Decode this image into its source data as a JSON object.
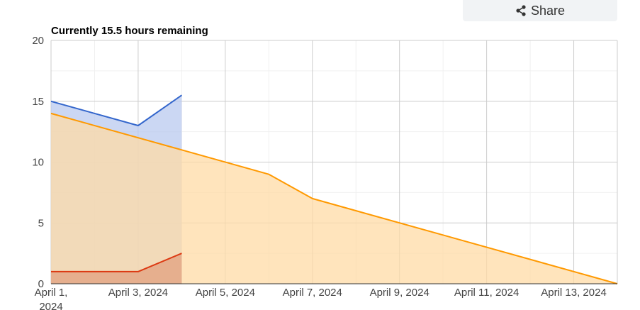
{
  "share": {
    "label": "Share",
    "icon": "share-icon"
  },
  "chart_data": {
    "type": "area",
    "title": "Currently 15.5 hours remaining",
    "xlabel": "",
    "ylabel": "",
    "ylim": [
      0,
      20
    ],
    "xlim": [
      "2024-04-01",
      "2024-04-14"
    ],
    "y_ticks": [
      "0",
      "5",
      "10",
      "15",
      "20"
    ],
    "x_ticks": [
      {
        "date": "2024-04-01",
        "label": [
          "April 1,",
          "2024"
        ]
      },
      {
        "date": "2024-04-03",
        "label": [
          "April 3, 2024"
        ]
      },
      {
        "date": "2024-04-05",
        "label": [
          "April 5, 2024"
        ]
      },
      {
        "date": "2024-04-07",
        "label": [
          "April 7, 2024"
        ]
      },
      {
        "date": "2024-04-09",
        "label": [
          "April 9, 2024"
        ]
      },
      {
        "date": "2024-04-11",
        "label": [
          "April 11, 2024"
        ]
      },
      {
        "date": "2024-04-13",
        "label": [
          "April 13, 2024"
        ]
      }
    ],
    "grid": true,
    "series": [
      {
        "color": "#3366cc",
        "fill": "#b9c9ef",
        "points": [
          [
            "2024-04-01",
            15
          ],
          [
            "2024-04-03",
            13
          ],
          [
            "2024-04-04",
            15.5
          ]
        ]
      },
      {
        "color": "#ff9900",
        "fill": "#ffdba6",
        "points": [
          [
            "2024-04-01",
            14
          ],
          [
            "2024-04-04",
            11
          ],
          [
            "2024-04-06",
            9
          ],
          [
            "2024-04-07",
            7
          ],
          [
            "2024-04-14",
            0
          ]
        ]
      },
      {
        "color": "#dc3912",
        "fill": "#e1a080",
        "points": [
          [
            "2024-04-01",
            1
          ],
          [
            "2024-04-03",
            1
          ],
          [
            "2024-04-04",
            2.5
          ]
        ]
      }
    ]
  }
}
